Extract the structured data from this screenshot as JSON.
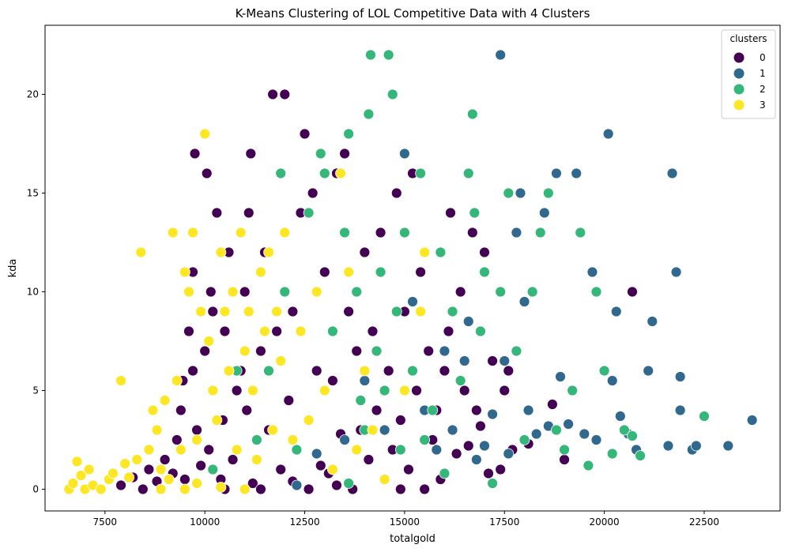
{
  "chart_data": {
    "type": "scatter",
    "title": "K-Means Clustering of LOL Competitive Data with 4 Clusters",
    "xlabel": "totalgold",
    "ylabel": "kda",
    "xlim": [
      6000,
      24400
    ],
    "ylim": [
      -1.1,
      23.5
    ],
    "xticks": [
      7500,
      10000,
      12500,
      15000,
      17500,
      20000,
      22500
    ],
    "yticks": [
      0,
      5,
      10,
      15,
      20
    ],
    "grid": false,
    "legend": {
      "title": "clusters",
      "placement": "top-right"
    },
    "series": [
      {
        "name": "0",
        "color": "#440154",
        "points": [
          [
            7900,
            0.2
          ],
          [
            8200,
            0.6
          ],
          [
            8450,
            0
          ],
          [
            8600,
            1.0
          ],
          [
            8800,
            0.4
          ],
          [
            9000,
            1.5
          ],
          [
            9200,
            0.8
          ],
          [
            9300,
            2.5
          ],
          [
            9400,
            4.0
          ],
          [
            9450,
            5.5
          ],
          [
            9500,
            0.5
          ],
          [
            9600,
            8.0
          ],
          [
            9700,
            6.0
          ],
          [
            9700,
            11.0
          ],
          [
            9750,
            17.0
          ],
          [
            9800,
            3.0
          ],
          [
            9900,
            1.2
          ],
          [
            10000,
            7.0
          ],
          [
            10050,
            16.0
          ],
          [
            10100,
            2.0
          ],
          [
            10150,
            10.0
          ],
          [
            10200,
            9.0
          ],
          [
            10300,
            14.0
          ],
          [
            10400,
            0.5
          ],
          [
            10450,
            3.5
          ],
          [
            10500,
            8.0
          ],
          [
            10600,
            12.0
          ],
          [
            10700,
            1.5
          ],
          [
            10800,
            5.0
          ],
          [
            10900,
            6.0
          ],
          [
            11000,
            10.0
          ],
          [
            11050,
            4.0
          ],
          [
            11100,
            14.0
          ],
          [
            11150,
            17.0
          ],
          [
            11200,
            0.3
          ],
          [
            11300,
            2.5
          ],
          [
            11400,
            7.0
          ],
          [
            11500,
            12.0
          ],
          [
            11600,
            3.0
          ],
          [
            11700,
            20.0
          ],
          [
            11800,
            8.0
          ],
          [
            11900,
            1.0
          ],
          [
            12000,
            20.0
          ],
          [
            12100,
            4.5
          ],
          [
            12200,
            9.0
          ],
          [
            12300,
            2.0
          ],
          [
            12400,
            14.0
          ],
          [
            12500,
            18.0
          ],
          [
            12600,
            3.5
          ],
          [
            12700,
            15.0
          ],
          [
            12800,
            6.0
          ],
          [
            12900,
            1.2
          ],
          [
            13000,
            11.0
          ],
          [
            13100,
            0.8
          ],
          [
            13200,
            5.5
          ],
          [
            13300,
            16.0
          ],
          [
            13400,
            2.8
          ],
          [
            13500,
            17.0
          ],
          [
            13600,
            9.0
          ],
          [
            13700,
            0
          ],
          [
            13800,
            7.0
          ],
          [
            13900,
            3.0
          ],
          [
            14000,
            12.0
          ],
          [
            14100,
            1.5
          ],
          [
            14200,
            8.0
          ],
          [
            14300,
            4.0
          ],
          [
            14400,
            13.0
          ],
          [
            14500,
            0.5
          ],
          [
            14600,
            6.0
          ],
          [
            14700,
            2.0
          ],
          [
            14800,
            15.0
          ],
          [
            14900,
            3.5
          ],
          [
            15000,
            9.0
          ],
          [
            15100,
            1.0
          ],
          [
            15200,
            16.0
          ],
          [
            15300,
            5.0
          ],
          [
            15400,
            11.0
          ],
          [
            15500,
            0
          ],
          [
            15600,
            7.0
          ],
          [
            15700,
            2.5
          ],
          [
            15800,
            4.0
          ],
          [
            15900,
            0.5
          ],
          [
            16000,
            6.0
          ],
          [
            16100,
            8.0
          ],
          [
            16150,
            14.0
          ],
          [
            16200,
            3.0
          ],
          [
            16300,
            1.8
          ],
          [
            16400,
            10.0
          ],
          [
            16500,
            5.0
          ],
          [
            16600,
            2.2
          ],
          [
            16700,
            13.0
          ],
          [
            16800,
            4.0
          ],
          [
            16900,
            3.2
          ],
          [
            17000,
            12.0
          ],
          [
            17100,
            0.8
          ],
          [
            17200,
            6.5
          ],
          [
            17400,
            1.0
          ],
          [
            17500,
            5.0
          ],
          [
            17600,
            6.0
          ],
          [
            17700,
            2.0
          ],
          [
            18100,
            2.3
          ],
          [
            18700,
            4.3
          ],
          [
            19000,
            1.5
          ],
          [
            20700,
            10.0
          ],
          [
            10500,
            0
          ],
          [
            11400,
            0
          ],
          [
            12600,
            0
          ],
          [
            13300,
            0.2
          ],
          [
            14900,
            0
          ],
          [
            12200,
            0.4
          ]
        ]
      },
      {
        "name": "1",
        "color": "#30688e",
        "points": [
          [
            12300,
            0.2
          ],
          [
            12800,
            1.8
          ],
          [
            13500,
            2.5
          ],
          [
            14000,
            5.5
          ],
          [
            14500,
            3.0
          ],
          [
            15000,
            17.0
          ],
          [
            15200,
            9.5
          ],
          [
            15500,
            4.0
          ],
          [
            15800,
            2.0
          ],
          [
            16000,
            7.0
          ],
          [
            16200,
            3.0
          ],
          [
            16500,
            6.5
          ],
          [
            16600,
            8.5
          ],
          [
            16800,
            1.5
          ],
          [
            17000,
            2.2
          ],
          [
            17200,
            3.8
          ],
          [
            17400,
            22.0
          ],
          [
            17500,
            6.5
          ],
          [
            17600,
            1.8
          ],
          [
            17800,
            13.0
          ],
          [
            18000,
            9.5
          ],
          [
            18100,
            4.0
          ],
          [
            18300,
            2.8
          ],
          [
            18500,
            14.0
          ],
          [
            18600,
            3.2
          ],
          [
            18800,
            16.0
          ],
          [
            18900,
            5.7
          ],
          [
            19100,
            3.3
          ],
          [
            19300,
            16.0
          ],
          [
            19500,
            2.8
          ],
          [
            19700,
            11.0
          ],
          [
            19800,
            2.5
          ],
          [
            20100,
            18.0
          ],
          [
            20200,
            5.5
          ],
          [
            20300,
            9.0
          ],
          [
            20400,
            3.7
          ],
          [
            20600,
            2.8
          ],
          [
            20800,
            2.0
          ],
          [
            21100,
            6.0
          ],
          [
            21200,
            8.5
          ],
          [
            21600,
            2.2
          ],
          [
            21700,
            16.0
          ],
          [
            21800,
            11.0
          ],
          [
            21900,
            5.7
          ],
          [
            21900,
            4.0
          ],
          [
            22200,
            2.0
          ],
          [
            22300,
            2.2
          ],
          [
            23100,
            2.2
          ],
          [
            23700,
            3.5
          ],
          [
            17900,
            15.0
          ]
        ]
      },
      {
        "name": "2",
        "color": "#35b779",
        "points": [
          [
            10200,
            1.0
          ],
          [
            10800,
            6.0
          ],
          [
            11300,
            2.5
          ],
          [
            11600,
            6.0
          ],
          [
            11900,
            16.0
          ],
          [
            12000,
            10.0
          ],
          [
            12300,
            2.0
          ],
          [
            12600,
            14.0
          ],
          [
            12900,
            17.0
          ],
          [
            13000,
            16.0
          ],
          [
            13200,
            8.0
          ],
          [
            13500,
            13.0
          ],
          [
            13600,
            18.0
          ],
          [
            13800,
            10.0
          ],
          [
            13900,
            4.5
          ],
          [
            14000,
            3.0
          ],
          [
            14100,
            19.0
          ],
          [
            14150,
            22.0
          ],
          [
            14300,
            7.0
          ],
          [
            14400,
            11.0
          ],
          [
            14500,
            5.0
          ],
          [
            14600,
            22.0
          ],
          [
            14700,
            20.0
          ],
          [
            14800,
            9.0
          ],
          [
            14900,
            2.0
          ],
          [
            15000,
            13.0
          ],
          [
            15200,
            6.0
          ],
          [
            15400,
            16.0
          ],
          [
            15500,
            2.5
          ],
          [
            15700,
            4.0
          ],
          [
            15900,
            12.0
          ],
          [
            16000,
            0.8
          ],
          [
            16200,
            9.0
          ],
          [
            16400,
            5.5
          ],
          [
            16600,
            16.0
          ],
          [
            16700,
            19.0
          ],
          [
            16750,
            14.0
          ],
          [
            16900,
            8.0
          ],
          [
            17000,
            11.0
          ],
          [
            17200,
            0.3
          ],
          [
            17400,
            10.0
          ],
          [
            17600,
            15.0
          ],
          [
            17800,
            7.0
          ],
          [
            18000,
            2.5
          ],
          [
            18200,
            10.0
          ],
          [
            18400,
            13.0
          ],
          [
            18600,
            15.0
          ],
          [
            18800,
            3.0
          ],
          [
            19000,
            2.0
          ],
          [
            19200,
            5.0
          ],
          [
            19400,
            13.0
          ],
          [
            19600,
            1.2
          ],
          [
            19800,
            10.0
          ],
          [
            20000,
            6.0
          ],
          [
            20200,
            1.8
          ],
          [
            20500,
            3.0
          ],
          [
            20700,
            2.7
          ],
          [
            20900,
            1.7
          ],
          [
            22500,
            3.7
          ],
          [
            13600,
            0.3
          ]
        ]
      },
      {
        "name": "3",
        "color": "#fde725",
        "points": [
          [
            6600,
            0
          ],
          [
            6700,
            0.3
          ],
          [
            6800,
            1.4
          ],
          [
            6900,
            0.7
          ],
          [
            7000,
            0
          ],
          [
            7100,
            1.0
          ],
          [
            7200,
            0.2
          ],
          [
            7400,
            0
          ],
          [
            7600,
            0.5
          ],
          [
            7700,
            0.8
          ],
          [
            7900,
            5.5
          ],
          [
            8000,
            1.3
          ],
          [
            8100,
            0.6
          ],
          [
            8300,
            1.5
          ],
          [
            8400,
            12.0
          ],
          [
            8600,
            2.0
          ],
          [
            8700,
            4.0
          ],
          [
            8800,
            3.0
          ],
          [
            8900,
            1.0
          ],
          [
            9000,
            4.5
          ],
          [
            9100,
            0.5
          ],
          [
            9200,
            13.0
          ],
          [
            9300,
            5.5
          ],
          [
            9400,
            2.0
          ],
          [
            9500,
            11.0
          ],
          [
            9600,
            10.0
          ],
          [
            9700,
            13.0
          ],
          [
            9800,
            2.5
          ],
          [
            9900,
            9.0
          ],
          [
            10000,
            18.0
          ],
          [
            10100,
            7.5
          ],
          [
            10200,
            5.0
          ],
          [
            10300,
            3.5
          ],
          [
            10400,
            12.0
          ],
          [
            10500,
            9.0
          ],
          [
            10600,
            6.0
          ],
          [
            10700,
            10.0
          ],
          [
            10800,
            2.0
          ],
          [
            10900,
            13.0
          ],
          [
            11000,
            7.0
          ],
          [
            11100,
            9.0
          ],
          [
            11200,
            5.0
          ],
          [
            11300,
            1.5
          ],
          [
            11400,
            11.0
          ],
          [
            11500,
            8.0
          ],
          [
            11600,
            12.0
          ],
          [
            11700,
            3.0
          ],
          [
            11800,
            9.0
          ],
          [
            11900,
            6.5
          ],
          [
            12000,
            13.0
          ],
          [
            12200,
            2.5
          ],
          [
            12400,
            8.0
          ],
          [
            12600,
            3.5
          ],
          [
            12800,
            10.0
          ],
          [
            13000,
            5.0
          ],
          [
            13200,
            1.0
          ],
          [
            13400,
            16.0
          ],
          [
            13600,
            11.0
          ],
          [
            13800,
            2.0
          ],
          [
            14000,
            6.0
          ],
          [
            14200,
            3.0
          ],
          [
            14500,
            0.5
          ],
          [
            15000,
            5.0
          ],
          [
            15400,
            9.0
          ],
          [
            15500,
            12.0
          ],
          [
            9500,
            0
          ],
          [
            8900,
            0
          ],
          [
            9800,
            0.3
          ],
          [
            10400,
            0.1
          ],
          [
            11000,
            0
          ]
        ]
      }
    ]
  }
}
